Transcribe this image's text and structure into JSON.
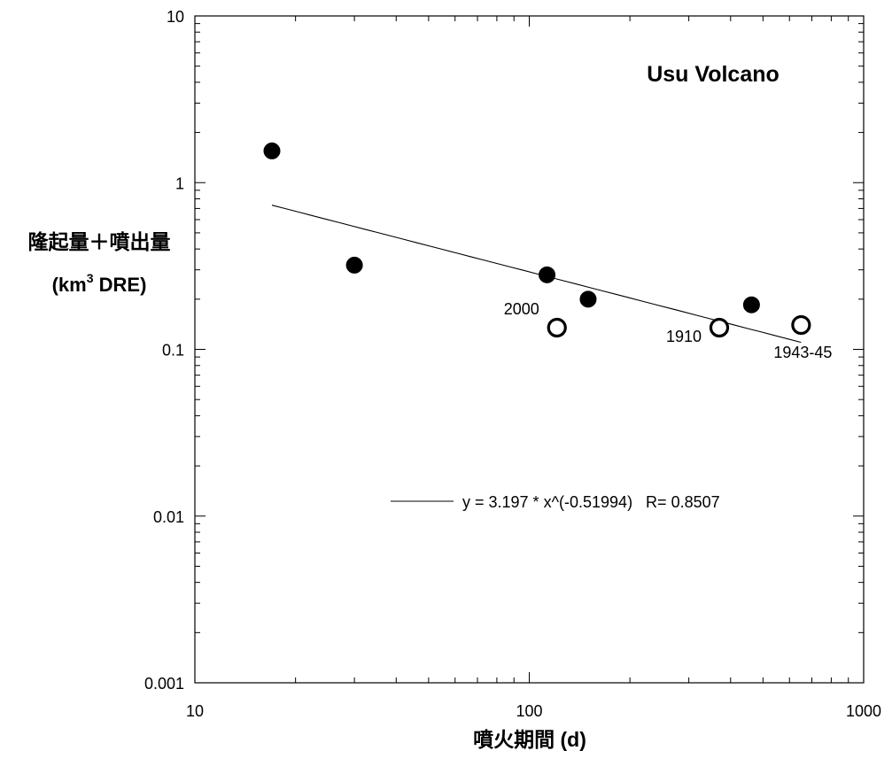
{
  "chart_data": {
    "type": "scatter",
    "title": "Usu Volcano",
    "xlabel": "噴火期間 (d)",
    "ylabel_line1": "隆起量＋噴出量",
    "ylabel_line2_prefix": "(km",
    "ylabel_line2_sup": "3",
    "ylabel_line2_suffix": " DRE)",
    "x_scale": "log",
    "y_scale": "log",
    "xlim": [
      10,
      1000
    ],
    "ylim": [
      0.001,
      10
    ],
    "x_tick_labels": [
      "10",
      "100",
      "1000"
    ],
    "y_tick_labels": [
      "10",
      "1",
      "0.1",
      "0.01",
      "0.001"
    ],
    "grid": false,
    "series": [
      {
        "marker": "filled-circle",
        "points": [
          {
            "x": 17,
            "y": 1.55
          },
          {
            "x": 30,
            "y": 0.32
          },
          {
            "x": 113,
            "y": 0.28
          },
          {
            "x": 150,
            "y": 0.2
          },
          {
            "x": 462,
            "y": 0.185
          }
        ]
      },
      {
        "marker": "open-circle",
        "points": [
          {
            "x": 121,
            "y": 0.135,
            "label": "2000"
          },
          {
            "x": 370,
            "y": 0.135,
            "label": "1910"
          },
          {
            "x": 650,
            "y": 0.14,
            "label": "1943-45"
          }
        ]
      }
    ],
    "fit": {
      "a": 3.197,
      "b": -0.51994,
      "x_range": [
        17,
        650
      ],
      "legend_text": "y = 3.197 * x^(-0.51994)   R= 0.8507"
    }
  }
}
